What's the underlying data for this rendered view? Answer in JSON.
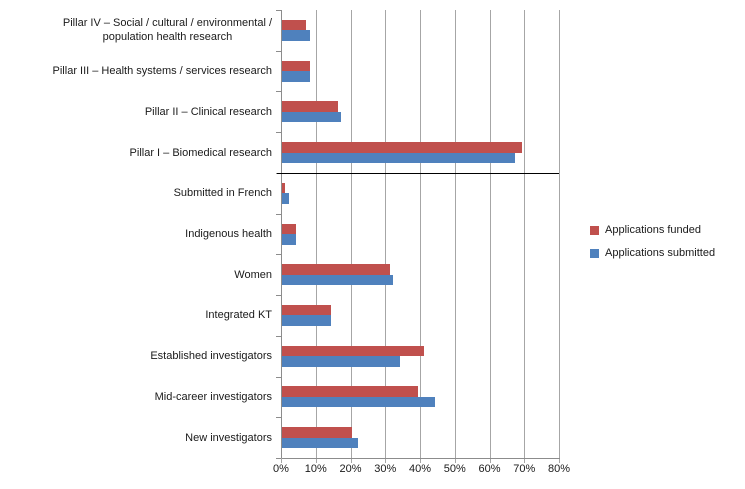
{
  "chart_data": {
    "type": "bar",
    "orientation": "horizontal",
    "title": "",
    "xlabel": "",
    "ylabel": "",
    "xlim": [
      0,
      80
    ],
    "x_ticks": [
      "0%",
      "10%",
      "20%",
      "30%",
      "40%",
      "50%",
      "60%",
      "70%",
      "80%"
    ],
    "grid": true,
    "legend_position": "right",
    "separator_after_category_index": 3,
    "categories": [
      "Pillar IV – Social / cultural / environmental /\npopulation health research",
      "Pillar III – Health systems / services research",
      "Pillar II – Clinical research",
      "Pillar I – Biomedical research",
      "Submitted in French",
      "Indigenous health",
      "Women",
      "Integrated KT",
      "Established investigators",
      "Mid-career investigators",
      "New investigators"
    ],
    "series": [
      {
        "name": "Applications funded",
        "color": "#c0504d",
        "values": [
          7,
          8,
          16,
          69,
          1,
          4,
          31,
          14,
          41,
          39,
          20
        ]
      },
      {
        "name": "Applications submitted",
        "color": "#4f81bd",
        "values": [
          8,
          8,
          17,
          67,
          2,
          4,
          32,
          14,
          34,
          44,
          22
        ]
      }
    ],
    "colors": {
      "funded": "#c0504d",
      "submitted": "#4f81bd",
      "gridline": "#a6a6a6",
      "axis": "#8c8c8c",
      "separator": "#000000"
    }
  }
}
